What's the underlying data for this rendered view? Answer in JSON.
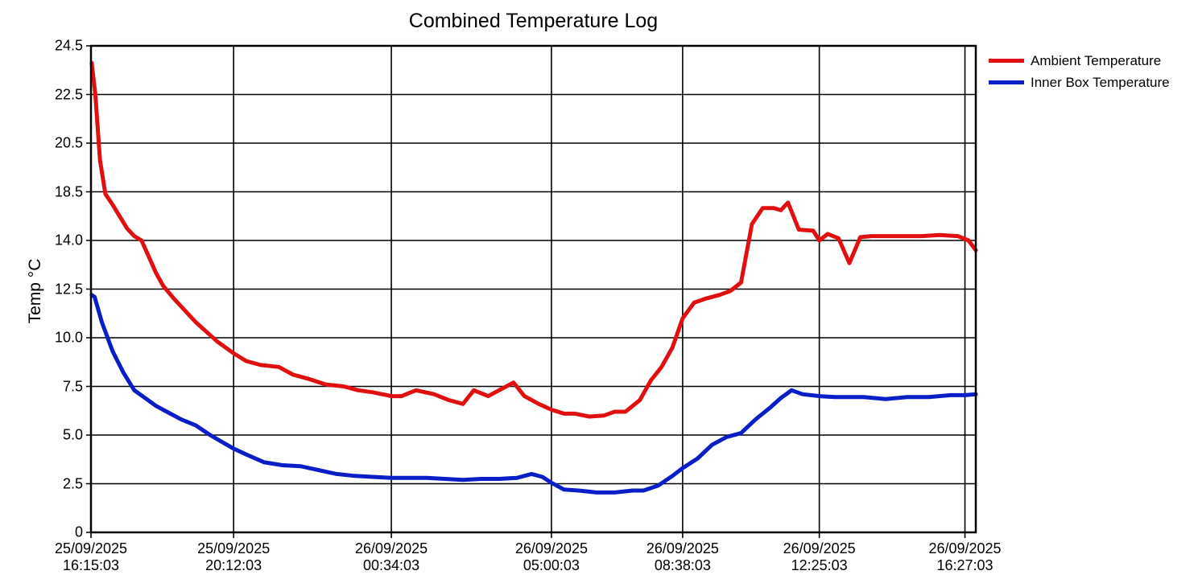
{
  "chart_data": {
    "type": "line",
    "title": "Combined Temperature Log",
    "xlabel": "",
    "ylabel": "Temp °C",
    "grid": true,
    "legend_position": "right-top",
    "y_ticks": [
      "0",
      "2.5",
      "5.0",
      "7.5",
      "10.0",
      "12.5",
      "14.0",
      "18.5",
      "20.5",
      "22.5",
      "24.5"
    ],
    "y_tick_values": [
      0,
      2.5,
      5.0,
      7.5,
      10.0,
      12.5,
      14.0,
      18.5,
      20.5,
      22.5,
      24.5
    ],
    "x_tick_hours": [
      0,
      3.95,
      8.317,
      12.75,
      16.383,
      20.167,
      24.2
    ],
    "x_ticks": [
      {
        "date": "25/09/2025",
        "time": "16:15:03"
      },
      {
        "date": "25/09/2025",
        "time": "20:12:03"
      },
      {
        "date": "26/09/2025",
        "time": "00:34:03"
      },
      {
        "date": "26/09/2025",
        "time": "05:00:03"
      },
      {
        "date": "26/09/2025",
        "time": "08:38:03"
      },
      {
        "date": "26/09/2025",
        "time": "12:25:03"
      },
      {
        "date": "26/09/2025",
        "time": "16:27:03"
      }
    ],
    "x_unit": "hours since 25/09/2025 16:15:03",
    "xlim": [
      0,
      24.5
    ],
    "ylim": [
      0,
      24.5
    ],
    "series": [
      {
        "name": "Ambient Temperature",
        "color": "#e01010",
        "x": [
          0.02,
          0.12,
          0.25,
          0.4,
          0.6,
          0.8,
          1.0,
          1.2,
          1.4,
          1.6,
          1.8,
          2.0,
          2.3,
          2.6,
          2.9,
          3.2,
          3.5,
          3.95,
          4.3,
          4.7,
          5.2,
          5.6,
          6.0,
          6.5,
          7.0,
          7.4,
          7.8,
          8.317,
          8.6,
          9.0,
          9.5,
          9.9,
          10.3,
          10.6,
          11.0,
          11.3,
          11.7,
          12.0,
          12.4,
          12.75,
          13.1,
          13.4,
          13.8,
          14.2,
          14.5,
          14.8,
          15.2,
          15.5,
          15.8,
          16.1,
          16.383,
          16.7,
          17.0,
          17.4,
          17.7,
          18.0,
          18.3,
          18.6,
          18.9,
          19.1,
          19.3,
          19.6,
          20.0,
          20.167,
          20.4,
          20.7,
          21.0,
          21.3,
          21.6,
          22.0,
          22.5,
          23.0,
          23.5,
          24.0,
          24.3,
          24.5
        ],
        "y": [
          23.8,
          22.5,
          19.8,
          18.3,
          17.3,
          16.2,
          15.1,
          14.4,
          14.0,
          13.5,
          13.0,
          12.6,
          12.0,
          11.4,
          10.8,
          10.3,
          9.8,
          9.2,
          8.8,
          8.6,
          8.5,
          8.1,
          7.9,
          7.6,
          7.5,
          7.3,
          7.2,
          7.0,
          7.0,
          7.3,
          7.1,
          6.8,
          6.6,
          7.3,
          7.0,
          7.3,
          7.7,
          7.0,
          6.6,
          6.3,
          6.1,
          6.1,
          5.95,
          6.0,
          6.2,
          6.2,
          6.8,
          7.8,
          8.5,
          9.5,
          11.0,
          11.8,
          12.0,
          12.2,
          12.4,
          12.7,
          15.5,
          17.0,
          17.0,
          16.8,
          17.5,
          15.0,
          14.9,
          14.0,
          14.6,
          14.2,
          13.3,
          14.3,
          14.4,
          14.4,
          14.4,
          14.4,
          14.5,
          14.4,
          14.0,
          13.7
        ]
      },
      {
        "name": "Inner Box Temperature",
        "color": "#0a1ec8",
        "x": [
          0.02,
          0.1,
          0.3,
          0.6,
          0.9,
          1.2,
          1.5,
          1.8,
          2.1,
          2.5,
          2.9,
          3.3,
          3.95,
          4.3,
          4.8,
          5.3,
          5.8,
          6.3,
          6.8,
          7.3,
          7.8,
          8.317,
          8.7,
          9.3,
          9.8,
          10.3,
          10.8,
          11.3,
          11.8,
          12.2,
          12.5,
          12.75,
          13.1,
          13.5,
          14.0,
          14.5,
          15.0,
          15.3,
          15.7,
          16.1,
          16.383,
          16.8,
          17.2,
          17.6,
          18.0,
          18.4,
          18.8,
          19.1,
          19.4,
          19.7,
          20.167,
          20.6,
          21.0,
          21.4,
          22.0,
          22.6,
          23.2,
          23.8,
          24.2,
          24.5
        ],
        "y": [
          12.2,
          12.1,
          10.8,
          9.3,
          8.2,
          7.3,
          6.9,
          6.5,
          6.2,
          5.8,
          5.5,
          5.0,
          4.3,
          4.0,
          3.6,
          3.45,
          3.4,
          3.2,
          3.0,
          2.9,
          2.85,
          2.8,
          2.8,
          2.8,
          2.75,
          2.7,
          2.75,
          2.75,
          2.8,
          3.0,
          2.85,
          2.55,
          2.2,
          2.15,
          2.05,
          2.05,
          2.15,
          2.15,
          2.4,
          2.9,
          3.3,
          3.8,
          4.5,
          4.9,
          5.1,
          5.8,
          6.4,
          6.9,
          7.3,
          7.1,
          7.0,
          6.95,
          6.95,
          6.95,
          6.85,
          6.95,
          6.95,
          7.05,
          7.05,
          7.1
        ]
      }
    ]
  },
  "legend": {
    "items": [
      {
        "label": "Ambient Temperature",
        "color": "#e01010"
      },
      {
        "label": "Inner Box Temperature",
        "color": "#0a1ec8"
      }
    ]
  }
}
